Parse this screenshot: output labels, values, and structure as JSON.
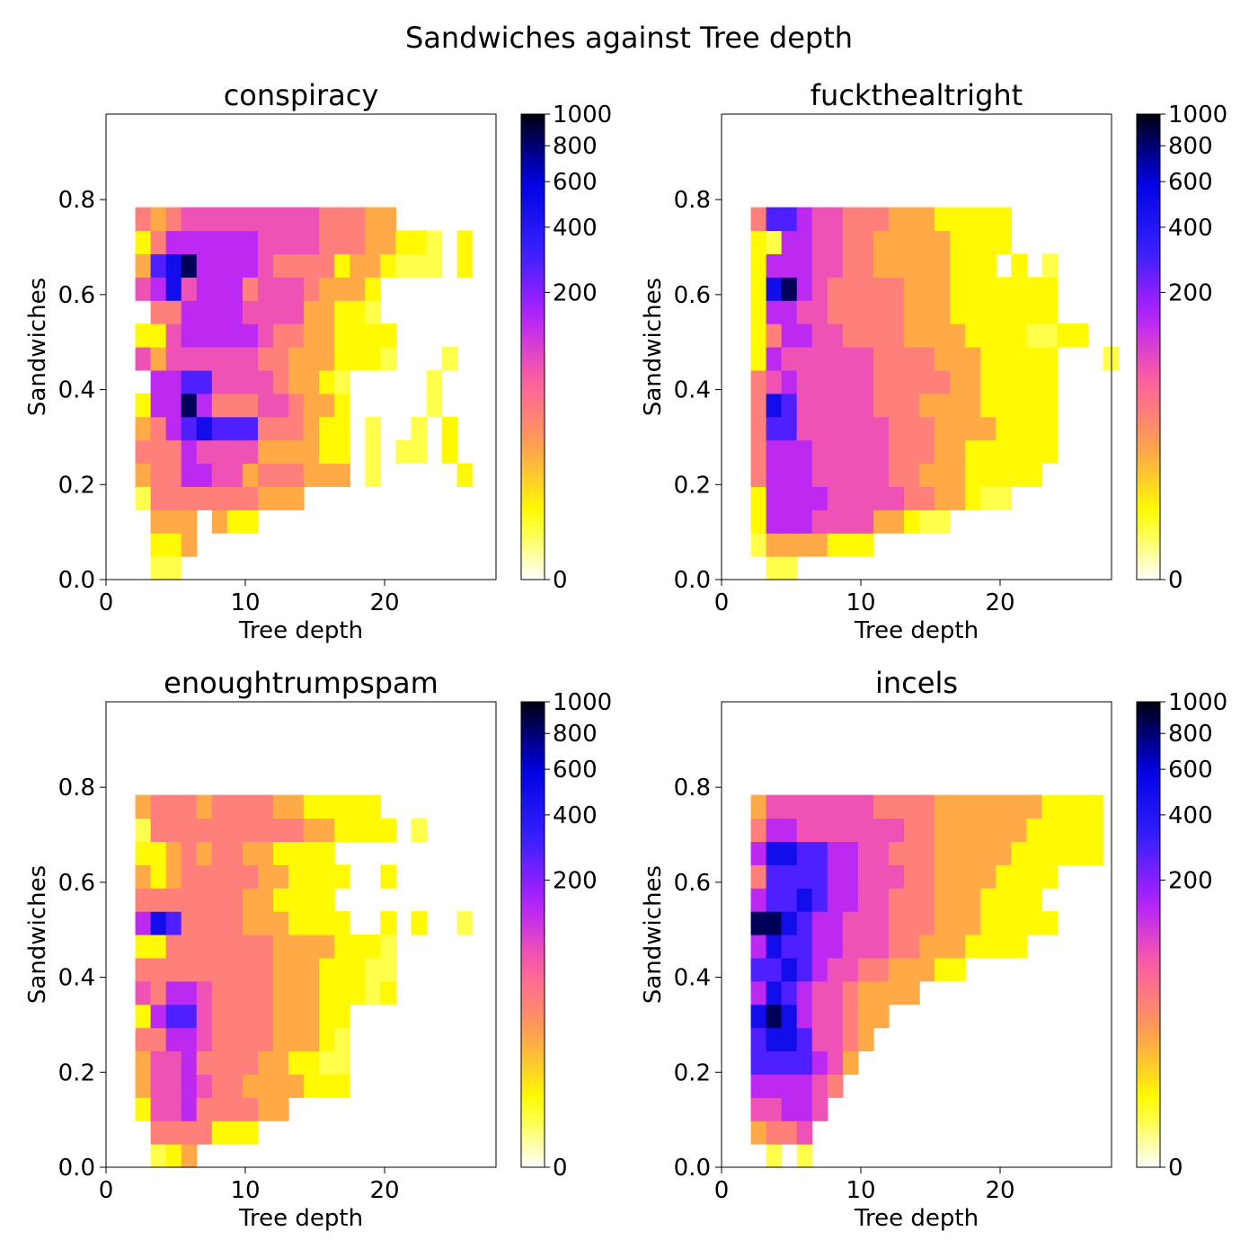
{
  "figure_title": "Sandwiches against Tree depth",
  "colorbar": {
    "ticks": [
      0,
      200,
      400,
      600,
      800,
      1000
    ],
    "stops": [
      "#ffffff",
      "#ffff00",
      "#ffa050",
      "#ff60a0",
      "#b020ff",
      "#3020ff",
      "#0000e0",
      "#000010"
    ]
  },
  "chart_data": [
    {
      "type": "heatmap",
      "title": "conspiracy",
      "xlabel": "Tree depth",
      "ylabel": "Sandwiches",
      "xlim": [
        0,
        28
      ],
      "ylim": [
        0,
        0.98
      ],
      "xticks": [
        0,
        10,
        20
      ],
      "yticks": [
        0.0,
        0.2,
        0.4,
        0.6,
        0.8
      ],
      "cmin": 0,
      "cmax": 1000,
      "x_start": 1.0,
      "y_start": 0.0,
      "bin_w": 1.1,
      "bin_h": 0.049,
      "rows": [
        "..11........................",
        "..223.......................",
        "..333.322...................",
        ".14444444333...............",
        ".34466553444333.1.....2.....",
        ".44465555333322.1.11.2......",
        ".34678777444322.1..1.2......",
        ".26696444554332.....1.......",
        "..6677555543321.....1.......",
        ".53555555443332221...1......",
        ".22566666544332222..........",
        "..446666555533221...........",
        ".5685666455543332...........",
        ".37896666544442332111.2.....",
        ".24666666555544433221.2.....",
        ".43455555555544433.........."
      ]
    },
    {
      "type": "heatmap",
      "title": "fuckthealtright",
      "xlabel": "Tree depth",
      "ylabel": "Sandwiches",
      "xlim": [
        0,
        28
      ],
      "ylim": [
        0,
        0.98
      ],
      "xticks": [
        0,
        10,
        20
      ],
      "yticks": [
        0.0,
        0.2,
        0.4,
        0.6,
        0.8
      ],
      "cmin": 0,
      "cmax": 1000,
      "x_start": 1.0,
      "y_start": 0.0,
      "bin_w": 1.1,
      "bin_h": 0.049,
      "rows": [
        "..11........................",
        ".13333222...................",
        ".2666555533211..............",
        ".26666555554433211..........",
        ".4666555554433322222........",
        ".46665555544433222222.......",
        ".47755555544433332222.......",
        ".48755555444333322222.......",
        ".45655555444443322222.......",
        ".26555555444433322222...1...",
        ".2466554444333322221122.....",
        ".26655444443332222222.......",
        ".28965444443332222222.......",
        ".2666554433333222.2.1.......",
        ".21665544333332222..........",
        ".47765544433322222.........."
      ]
    },
    {
      "type": "heatmap",
      "title": "enoughtrumpspam",
      "xlabel": "Tree depth",
      "ylabel": "Sandwiches",
      "xlim": [
        0,
        28
      ],
      "ylim": [
        0,
        0.98
      ],
      "xticks": [
        0,
        10,
        20
      ],
      "yticks": [
        0.0,
        0.2,
        0.4,
        0.6,
        0.8
      ],
      "cmin": 0,
      "cmax": 1000,
      "x_start": 1.0,
      "y_start": 0.0,
      "bin_w": 1.1,
      "bin_h": 0.049,
      "rows": [
        "..123.......................",
        "..4444222...................",
        ".2556444433.................",
        ".35565443333222.............",
        ".35564444332211.............",
        ".44665444433321.............",
        ".26775444433322.............",
        ".54665444433322212..........",
        ".44444444433322211..........",
        ".22444444433332221..........",
        ".68744443332222..2.2..1.....",
        ".4444444332222..............",
        ".32344444332222..2..........",
        ".2234344332222..............",
        ".14444444444332222.1........",
        ".3444344443322222..........."
      ]
    },
    {
      "type": "heatmap",
      "title": "incels",
      "xlabel": "Tree depth",
      "ylabel": "Sandwiches",
      "xlim": [
        0,
        28
      ],
      "ylim": [
        0,
        0.98
      ],
      "xticks": [
        0,
        10,
        20
      ],
      "yticks": [
        0.0,
        0.2,
        0.4,
        0.6,
        0.8
      ],
      "cmin": 0,
      "cmax": 1000,
      "x_start": 1.0,
      "y_start": 0.0,
      "bin_w": 1.1,
      "bin_h": 0.049,
      "rows": [
        "..1.1.......................",
        ".3445.......................",
        ".55665......................",
        ".666654.....................",
        ".7777653....................",
        ".78875543...................",
        ".898655433..................",
        ".68765543333................",
        ".77876554433322.............",
        ".687766555443332222.........",
        ".99876655544433322222.......",
        ".6778766554443332222........",
        ".47777665554433332222.......",
        ".68877665544433333222222....",
        ".46655555554433333322222....",
        ".35555555444433333332222...."
      ]
    }
  ]
}
